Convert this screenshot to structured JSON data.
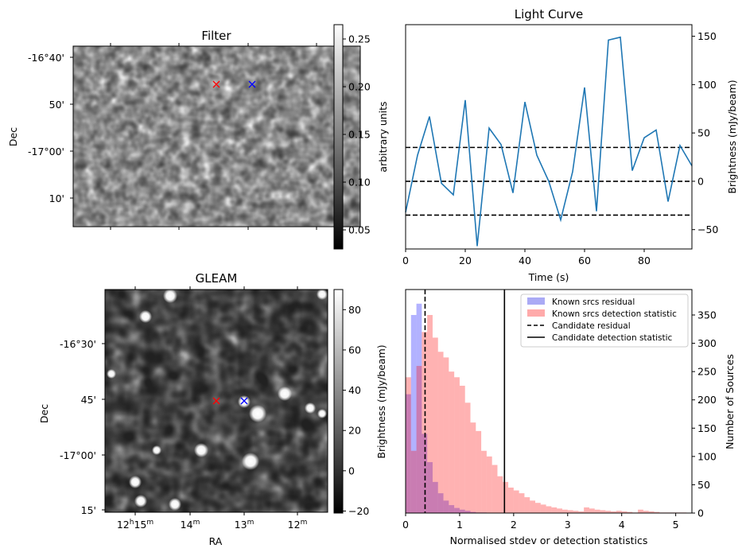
{
  "panels": {
    "filter": {
      "title": "Filter",
      "ylabel": "Dec",
      "y_ticks": [
        "-16°40'",
        "50'",
        "-17°00'",
        "10'"
      ],
      "colorbar": {
        "label": "arbitrary units",
        "ticks": [
          "0.25",
          "0.20",
          "0.15",
          "0.10",
          "0.05"
        ],
        "range": [
          0.03,
          0.265
        ]
      }
    },
    "gleam": {
      "title": "GLEAM",
      "xlabel": "RA",
      "ylabel": "Dec",
      "y_ticks": [
        "-16°30'",
        "45'",
        "-17°00'",
        "15'"
      ],
      "x_ticks": [
        {
          "main": "12",
          "sup1": "h",
          "mid": "15",
          "sup2": "m"
        },
        {
          "main": "14",
          "sup1": "m"
        },
        {
          "main": "13",
          "sup1": "m"
        },
        {
          "main": "12",
          "sup1": "m"
        }
      ],
      "colorbar": {
        "label": "Brightness (mJy/beam)",
        "ticks": [
          "80",
          "60",
          "40",
          "20",
          "0",
          "−20"
        ],
        "range": [
          -21,
          90
        ]
      }
    },
    "light_curve": {
      "title": "Light Curve",
      "xlabel": "Time (s)",
      "ylabel": "Brightness (mJy/beam)",
      "x_ticks": [
        "0",
        "20",
        "40",
        "60",
        "80"
      ],
      "y_ticks": [
        "150",
        "100",
        "50",
        "0",
        "−50"
      ],
      "line_color": "#1f77b4",
      "threshold_color": "#000000"
    },
    "histogram": {
      "xlabel": "Normalised stdev or detection statistics",
      "ylabel": "Number of Sources",
      "x_ticks": [
        "0",
        "1",
        "2",
        "3",
        "4",
        "5"
      ],
      "y_ticks": [
        "350",
        "300",
        "250",
        "200",
        "150",
        "100",
        "50",
        "0"
      ],
      "legend": [
        {
          "label": "Known srcs residual",
          "kind": "patch",
          "color": "#aaaaf5"
        },
        {
          "label": "Known srcs detection statistic",
          "kind": "patch",
          "color": "#ffaaaa"
        },
        {
          "label": "Candidate residual",
          "kind": "dashed",
          "color": "#000000"
        },
        {
          "label": "Candidate detection statistic",
          "kind": "solid",
          "color": "#000000"
        }
      ]
    }
  },
  "chart_data": [
    {
      "type": "image",
      "title": "Filter",
      "ylabel": "Dec",
      "colorbar_label": "arbitrary units",
      "colorbar_range": [
        0.03,
        0.265
      ],
      "markers": [
        {
          "color": "#ff0000",
          "symbol": "x"
        },
        {
          "color": "#0000ff",
          "symbol": "x"
        }
      ]
    },
    {
      "type": "image",
      "title": "GLEAM",
      "xlabel": "RA",
      "ylabel": "Dec",
      "colorbar_label": "Brightness (mJy/beam)",
      "colorbar_range": [
        -21,
        90
      ],
      "markers": [
        {
          "color": "#ff0000",
          "symbol": "x"
        },
        {
          "color": "#0000ff",
          "symbol": "x"
        }
      ]
    },
    {
      "type": "line",
      "title": "Light Curve",
      "xlabel": "Time (s)",
      "ylabel": "Brightness (mJy/beam)",
      "xlim": [
        0,
        96
      ],
      "ylim": [
        -70,
        162
      ],
      "x": [
        0,
        4,
        8,
        12,
        16,
        20,
        24,
        28,
        32,
        36,
        40,
        44,
        48,
        52,
        56,
        60,
        64,
        68,
        72,
        76,
        80,
        84,
        88,
        92,
        96
      ],
      "y": [
        -32,
        27,
        67,
        -2,
        -14,
        84,
        -67,
        55,
        38,
        -12,
        82,
        27,
        0,
        -40,
        10,
        97,
        -31,
        146,
        149,
        11,
        45,
        53,
        -21,
        37,
        16
      ],
      "hlines": [
        0,
        35,
        -35
      ]
    },
    {
      "type": "bar",
      "xlabel": "Normalised stdev or detection statistics",
      "ylabel": "Number of Sources",
      "xlim": [
        0,
        5.3
      ],
      "ylim": [
        0,
        395
      ],
      "bin_width": 0.1,
      "series": [
        {
          "name": "Known srcs residual",
          "bin_starts": [
            0.0,
            0.1,
            0.2,
            0.3,
            0.4,
            0.5,
            0.6,
            0.7,
            0.8,
            0.9,
            1.0,
            1.1,
            1.2,
            1.3,
            1.4
          ],
          "counts": [
            210,
            350,
            370,
            140,
            90,
            55,
            35,
            22,
            14,
            9,
            6,
            4,
            2,
            1,
            1
          ]
        },
        {
          "name": "Known srcs detection statistic",
          "bin_starts": [
            0.0,
            0.1,
            0.2,
            0.3,
            0.4,
            0.5,
            0.6,
            0.7,
            0.8,
            0.9,
            1.0,
            1.1,
            1.2,
            1.3,
            1.4,
            1.5,
            1.6,
            1.7,
            1.8,
            1.9,
            2.0,
            2.1,
            2.2,
            2.3,
            2.4,
            2.5,
            2.6,
            2.7,
            2.8,
            2.9,
            3.0,
            3.1,
            3.2,
            3.3,
            3.4,
            3.5,
            3.6,
            3.7,
            3.8,
            3.9,
            4.0,
            4.1,
            4.2,
            4.3,
            4.4,
            4.5,
            4.6,
            4.7,
            4.8,
            4.9,
            5.0,
            5.1
          ],
          "counts": [
            240,
            110,
            260,
            320,
            350,
            310,
            285,
            275,
            250,
            240,
            225,
            195,
            160,
            145,
            110,
            100,
            85,
            65,
            55,
            45,
            40,
            35,
            28,
            22,
            18,
            15,
            12,
            10,
            8,
            6,
            5,
            4,
            3,
            10,
            8,
            6,
            5,
            4,
            3,
            4,
            3,
            2,
            1,
            6,
            4,
            3,
            2,
            1,
            1,
            1,
            1,
            1
          ]
        }
      ],
      "vlines": [
        {
          "name": "Candidate residual",
          "x": 0.36,
          "style": "dashed"
        },
        {
          "name": "Candidate detection statistic",
          "x": 1.83,
          "style": "solid"
        }
      ]
    }
  ]
}
